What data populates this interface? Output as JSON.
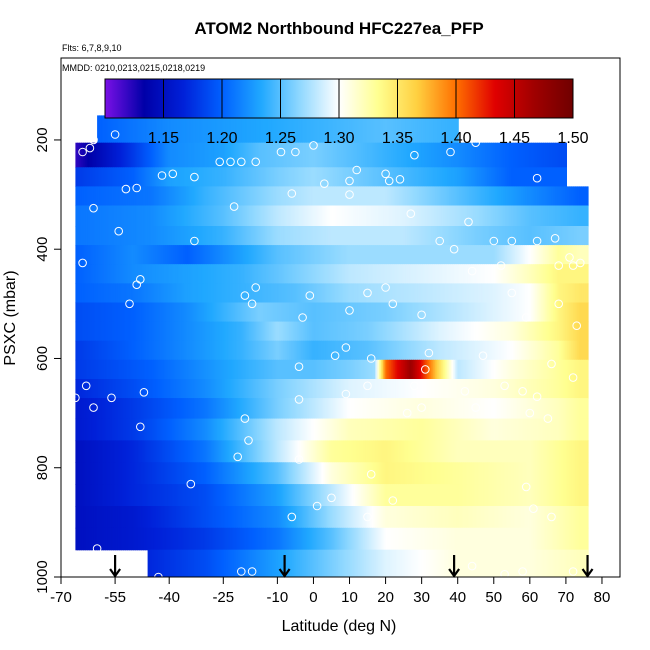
{
  "chart_data": {
    "type": "heatmap",
    "title": "ATOM2 Northbound HFC227ea_PFP",
    "subtitle_flights": "Flts: 6,7,8,9,10",
    "subtitle_dates": "MMDD: 0210,0213,0215,0218,0219",
    "xlabel": "Latitude (deg N)",
    "ylabel": "PSXC (mbar)",
    "xlim": [
      -70,
      85
    ],
    "ylim": [
      1000,
      50
    ],
    "x_ticks": [
      -70,
      -55,
      -40,
      -25,
      -10,
      0,
      10,
      20,
      30,
      40,
      50,
      60,
      70,
      80
    ],
    "x_tick_labels": [
      "-70",
      "-55",
      "-40",
      "-25",
      "-10",
      "0",
      "10",
      "20",
      "30",
      "40",
      "50",
      "60",
      "70",
      "80"
    ],
    "y_ticks": [
      200,
      400,
      600,
      800,
      1000
    ],
    "y_tick_labels": [
      "200",
      "400",
      "600",
      "800",
      "1000"
    ],
    "colorbar": {
      "min": 1.1,
      "max": 1.5,
      "ticks": [
        1.15,
        1.2,
        1.25,
        1.3,
        1.35,
        1.4,
        1.45,
        1.5
      ],
      "tick_labels": [
        "1.15",
        "1.20",
        "1.25",
        "1.30",
        "1.35",
        "1.40",
        "1.45",
        "1.50"
      ],
      "colors": [
        "#7a10e6",
        "#0000a8",
        "#0020d8",
        "#0060ff",
        "#20a8ff",
        "#90d8ff",
        "#ffffff",
        "#ffff90",
        "#ffd040",
        "#ff7000",
        "#e00000",
        "#a00000",
        "#700000"
      ]
    },
    "surface_markers_lat": [
      -55,
      -8,
      39,
      76
    ],
    "grid": [
      {
        "p": 180,
        "x0": -60,
        "x1": 38,
        "lats": [
          -60,
          -40,
          -20,
          0,
          20,
          38
        ],
        "vals": [
          1.2,
          1.22,
          1.23,
          1.24,
          1.25,
          1.24
        ]
      },
      {
        "p": 230,
        "x0": -66,
        "x1": 68,
        "lats": [
          -66,
          -50,
          -40,
          -25,
          -15,
          0,
          20,
          40,
          55,
          68
        ],
        "vals": [
          1.12,
          1.18,
          1.22,
          1.23,
          1.25,
          1.26,
          1.24,
          1.22,
          1.2,
          1.19
        ]
      },
      {
        "p": 270,
        "x0": -66,
        "x1": 68,
        "lats": [
          -66,
          -50,
          -40,
          -25,
          -10,
          0,
          20,
          40,
          55,
          68
        ],
        "vals": [
          1.18,
          1.2,
          1.23,
          1.24,
          1.26,
          1.27,
          1.25,
          1.23,
          1.2,
          1.2
        ]
      },
      {
        "p": 300,
        "x0": -66,
        "x1": 74,
        "lats": [
          -66,
          -45,
          -30,
          -10,
          0,
          20,
          40,
          60,
          74
        ],
        "vals": [
          1.2,
          1.21,
          1.24,
          1.27,
          1.28,
          1.28,
          1.25,
          1.22,
          1.2
        ]
      },
      {
        "p": 340,
        "x0": -66,
        "x1": 74,
        "lats": [
          -66,
          -45,
          -25,
          -10,
          5,
          25,
          45,
          60,
          74
        ],
        "vals": [
          1.21,
          1.22,
          1.25,
          1.28,
          1.3,
          1.29,
          1.27,
          1.25,
          1.24
        ]
      },
      {
        "p": 375,
        "x0": -66,
        "x1": 74,
        "lats": [
          -66,
          -45,
          -25,
          -10,
          5,
          25,
          45,
          60,
          74
        ],
        "vals": [
          1.21,
          1.22,
          1.24,
          1.27,
          1.28,
          1.28,
          1.26,
          1.25,
          1.26
        ]
      },
      {
        "p": 410,
        "x0": -66,
        "x1": 74,
        "lats": [
          -66,
          -50,
          -35,
          -25,
          -10,
          10,
          30,
          50,
          60,
          68,
          74
        ],
        "vals": [
          1.2,
          1.22,
          1.2,
          1.22,
          1.25,
          1.27,
          1.27,
          1.27,
          1.3,
          1.33,
          1.32
        ]
      },
      {
        "p": 445,
        "x0": -66,
        "x1": 74,
        "lats": [
          -66,
          -50,
          -35,
          -20,
          -5,
          10,
          30,
          50,
          60,
          68,
          74
        ],
        "vals": [
          1.2,
          1.22,
          1.23,
          1.24,
          1.26,
          1.28,
          1.29,
          1.3,
          1.32,
          1.34,
          1.34
        ]
      },
      {
        "p": 480,
        "x0": -66,
        "x1": 74,
        "lats": [
          -66,
          -50,
          -35,
          -20,
          -5,
          10,
          30,
          50,
          60,
          68,
          74
        ],
        "vals": [
          1.2,
          1.21,
          1.23,
          1.24,
          1.25,
          1.27,
          1.28,
          1.29,
          1.3,
          1.34,
          1.35
        ]
      },
      {
        "p": 515,
        "x0": -66,
        "x1": 74,
        "lats": [
          -66,
          -50,
          -35,
          -25,
          -15,
          0,
          20,
          40,
          60,
          68,
          74
        ],
        "vals": [
          1.19,
          1.2,
          1.22,
          1.24,
          1.26,
          1.25,
          1.26,
          1.28,
          1.3,
          1.34,
          1.36
        ]
      },
      {
        "p": 550,
        "x0": -66,
        "x1": 74,
        "lats": [
          -66,
          -50,
          -35,
          -20,
          -10,
          0,
          15,
          35,
          55,
          68,
          74
        ],
        "vals": [
          1.19,
          1.2,
          1.22,
          1.24,
          1.27,
          1.25,
          1.26,
          1.29,
          1.31,
          1.34,
          1.36
        ]
      },
      {
        "p": 585,
        "x0": -66,
        "x1": 74,
        "lats": [
          -66,
          -50,
          -35,
          -20,
          -10,
          0,
          15,
          35,
          55,
          68,
          74
        ],
        "vals": [
          1.18,
          1.2,
          1.22,
          1.24,
          1.26,
          1.24,
          1.25,
          1.28,
          1.3,
          1.33,
          1.36
        ]
      },
      {
        "p": 620,
        "x0": -66,
        "x1": 74,
        "lats": [
          -66,
          -45,
          -25,
          -10,
          0,
          10,
          17,
          20,
          27,
          32,
          40,
          55,
          68,
          74
        ],
        "vals": [
          1.18,
          1.2,
          1.23,
          1.25,
          1.25,
          1.26,
          1.27,
          1.4,
          1.47,
          1.4,
          1.28,
          1.31,
          1.33,
          1.34
        ]
      },
      {
        "p": 655,
        "x0": -66,
        "x1": 74,
        "lats": [
          -66,
          -50,
          -30,
          -10,
          10,
          30,
          50,
          68,
          74
        ],
        "vals": [
          1.17,
          1.19,
          1.22,
          1.26,
          1.29,
          1.3,
          1.31,
          1.33,
          1.34
        ]
      },
      {
        "p": 690,
        "x0": -66,
        "x1": 74,
        "lats": [
          -66,
          -50,
          -30,
          -10,
          10,
          30,
          50,
          68,
          74
        ],
        "vals": [
          1.16,
          1.18,
          1.21,
          1.26,
          1.3,
          1.31,
          1.3,
          1.32,
          1.33
        ]
      },
      {
        "p": 730,
        "x0": -66,
        "x1": 74,
        "lats": [
          -66,
          -50,
          -30,
          -10,
          10,
          30,
          50,
          68,
          74
        ],
        "vals": [
          1.16,
          1.18,
          1.22,
          1.28,
          1.32,
          1.33,
          1.31,
          1.32,
          1.33
        ]
      },
      {
        "p": 770,
        "x0": -66,
        "x1": 74,
        "lats": [
          -66,
          -50,
          -30,
          -10,
          5,
          20,
          40,
          60,
          74
        ],
        "vals": [
          1.15,
          1.17,
          1.21,
          1.28,
          1.33,
          1.34,
          1.32,
          1.32,
          1.34
        ]
      },
      {
        "p": 810,
        "x0": -66,
        "x1": 74,
        "lats": [
          -66,
          -50,
          -30,
          -10,
          5,
          20,
          40,
          60,
          74
        ],
        "vals": [
          1.15,
          1.17,
          1.2,
          1.25,
          1.31,
          1.34,
          1.33,
          1.32,
          1.34
        ]
      },
      {
        "p": 850,
        "x0": -66,
        "x1": 74,
        "lats": [
          -66,
          -50,
          -30,
          -10,
          5,
          20,
          40,
          60,
          74
        ],
        "vals": [
          1.15,
          1.17,
          1.19,
          1.23,
          1.28,
          1.33,
          1.33,
          1.32,
          1.34
        ]
      },
      {
        "p": 890,
        "x0": -66,
        "x1": 74,
        "lats": [
          -66,
          -50,
          -30,
          -10,
          5,
          20,
          40,
          60,
          74
        ],
        "vals": [
          1.15,
          1.16,
          1.19,
          1.22,
          1.27,
          1.31,
          1.32,
          1.31,
          1.33
        ]
      },
      {
        "p": 930,
        "x0": -66,
        "x1": 74,
        "lats": [
          -66,
          -50,
          -30,
          -10,
          5,
          20,
          40,
          60,
          74
        ],
        "vals": [
          1.15,
          1.16,
          1.18,
          1.21,
          1.25,
          1.3,
          1.31,
          1.31,
          1.33
        ]
      },
      {
        "p": 970,
        "x0": -46,
        "x1": 74,
        "lats": [
          -46,
          -30,
          -10,
          5,
          20,
          40,
          60,
          74
        ],
        "vals": [
          1.17,
          1.19,
          1.23,
          1.26,
          1.29,
          1.31,
          1.31,
          1.32
        ]
      }
    ],
    "samples": [
      {
        "lat": -61,
        "p": 200
      },
      {
        "lat": -55,
        "p": 190
      },
      {
        "lat": -64,
        "p": 222
      },
      {
        "lat": -62,
        "p": 215
      },
      {
        "lat": -52,
        "p": 290
      },
      {
        "lat": -49,
        "p": 288
      },
      {
        "lat": -42,
        "p": 265
      },
      {
        "lat": -39,
        "p": 262
      },
      {
        "lat": -33,
        "p": 268
      },
      {
        "lat": -26,
        "p": 240
      },
      {
        "lat": -23,
        "p": 240
      },
      {
        "lat": -20,
        "p": 240
      },
      {
        "lat": -16,
        "p": 240
      },
      {
        "lat": -9,
        "p": 222
      },
      {
        "lat": -5,
        "p": 222
      },
      {
        "lat": 0,
        "p": 210
      },
      {
        "lat": 3,
        "p": 280
      },
      {
        "lat": 10,
        "p": 275
      },
      {
        "lat": 12,
        "p": 255
      },
      {
        "lat": 20,
        "p": 262
      },
      {
        "lat": 21,
        "p": 275
      },
      {
        "lat": 24,
        "p": 272
      },
      {
        "lat": 28,
        "p": 228
      },
      {
        "lat": 38,
        "p": 222
      },
      {
        "lat": 45,
        "p": 205
      },
      {
        "lat": 62,
        "p": 270
      },
      {
        "lat": 72,
        "p": 262
      },
      {
        "lat": -61,
        "p": 325
      },
      {
        "lat": -54,
        "p": 367
      },
      {
        "lat": -33,
        "p": 385
      },
      {
        "lat": -22,
        "p": 322
      },
      {
        "lat": -6,
        "p": 298
      },
      {
        "lat": 10,
        "p": 300
      },
      {
        "lat": 27,
        "p": 335
      },
      {
        "lat": 35,
        "p": 385
      },
      {
        "lat": 39,
        "p": 400
      },
      {
        "lat": 43,
        "p": 350
      },
      {
        "lat": 50,
        "p": 385
      },
      {
        "lat": 55,
        "p": 385
      },
      {
        "lat": 62,
        "p": 385
      },
      {
        "lat": 67,
        "p": 380
      },
      {
        "lat": 71,
        "p": 415
      },
      {
        "lat": 74,
        "p": 425
      },
      {
        "lat": 72,
        "p": 430
      },
      {
        "lat": 68,
        "p": 430
      },
      {
        "lat": -64,
        "p": 425
      },
      {
        "lat": -48,
        "p": 455
      },
      {
        "lat": -49,
        "p": 465
      },
      {
        "lat": -16,
        "p": 470
      },
      {
        "lat": -3,
        "p": 525
      },
      {
        "lat": -1,
        "p": 485
      },
      {
        "lat": 10,
        "p": 512
      },
      {
        "lat": 15,
        "p": 480
      },
      {
        "lat": 20,
        "p": 470
      },
      {
        "lat": 22,
        "p": 500
      },
      {
        "lat": 30,
        "p": 520
      },
      {
        "lat": 44,
        "p": 440
      },
      {
        "lat": 52,
        "p": 430
      },
      {
        "lat": 55,
        "p": 480
      },
      {
        "lat": 59,
        "p": 525
      },
      {
        "lat": 68,
        "p": 500
      },
      {
        "lat": 73,
        "p": 540
      },
      {
        "lat": -51,
        "p": 500
      },
      {
        "lat": -19,
        "p": 485
      },
      {
        "lat": -17,
        "p": 500
      },
      {
        "lat": 6,
        "p": 595
      },
      {
        "lat": 9,
        "p": 580
      },
      {
        "lat": 16,
        "p": 600
      },
      {
        "lat": 32,
        "p": 590
      },
      {
        "lat": 31,
        "p": 620
      },
      {
        "lat": 47,
        "p": 595
      },
      {
        "lat": 66,
        "p": 610
      },
      {
        "lat": 72,
        "p": 635
      },
      {
        "lat": 78,
        "p": 565
      },
      {
        "lat": 79,
        "p": 570
      },
      {
        "lat": -4,
        "p": 615
      },
      {
        "lat": -66,
        "p": 672
      },
      {
        "lat": -63,
        "p": 650
      },
      {
        "lat": -61,
        "p": 690
      },
      {
        "lat": -56,
        "p": 672
      },
      {
        "lat": -47,
        "p": 662
      },
      {
        "lat": -48,
        "p": 725
      },
      {
        "lat": -19,
        "p": 710
      },
      {
        "lat": -18,
        "p": 750
      },
      {
        "lat": -4,
        "p": 675
      },
      {
        "lat": 9,
        "p": 665
      },
      {
        "lat": 15,
        "p": 650
      },
      {
        "lat": 28,
        "p": 650
      },
      {
        "lat": 30,
        "p": 690
      },
      {
        "lat": 42,
        "p": 660
      },
      {
        "lat": 45,
        "p": 690
      },
      {
        "lat": 58,
        "p": 660
      },
      {
        "lat": 62,
        "p": 670
      },
      {
        "lat": 60,
        "p": 700
      },
      {
        "lat": 65,
        "p": 710
      },
      {
        "lat": 53,
        "p": 650
      },
      {
        "lat": 26,
        "p": 700
      },
      {
        "lat": -21,
        "p": 780
      },
      {
        "lat": -4,
        "p": 785
      },
      {
        "lat": -34,
        "p": 830
      },
      {
        "lat": 1,
        "p": 870
      },
      {
        "lat": 5,
        "p": 855
      },
      {
        "lat": 16,
        "p": 812
      },
      {
        "lat": 22,
        "p": 860
      },
      {
        "lat": 15,
        "p": 890
      },
      {
        "lat": 59,
        "p": 835
      },
      {
        "lat": 61,
        "p": 875
      },
      {
        "lat": 66,
        "p": 890
      },
      {
        "lat": -6,
        "p": 890
      },
      {
        "lat": -68,
        "p": 948
      },
      {
        "lat": -60,
        "p": 948
      },
      {
        "lat": -17,
        "p": 990
      },
      {
        "lat": -20,
        "p": 990
      },
      {
        "lat": 44,
        "p": 980
      },
      {
        "lat": 53,
        "p": 995
      },
      {
        "lat": 58,
        "p": 990
      },
      {
        "lat": 72,
        "p": 990
      },
      {
        "lat": 78,
        "p": 990
      },
      {
        "lat": -43,
        "p": 1000
      }
    ]
  }
}
